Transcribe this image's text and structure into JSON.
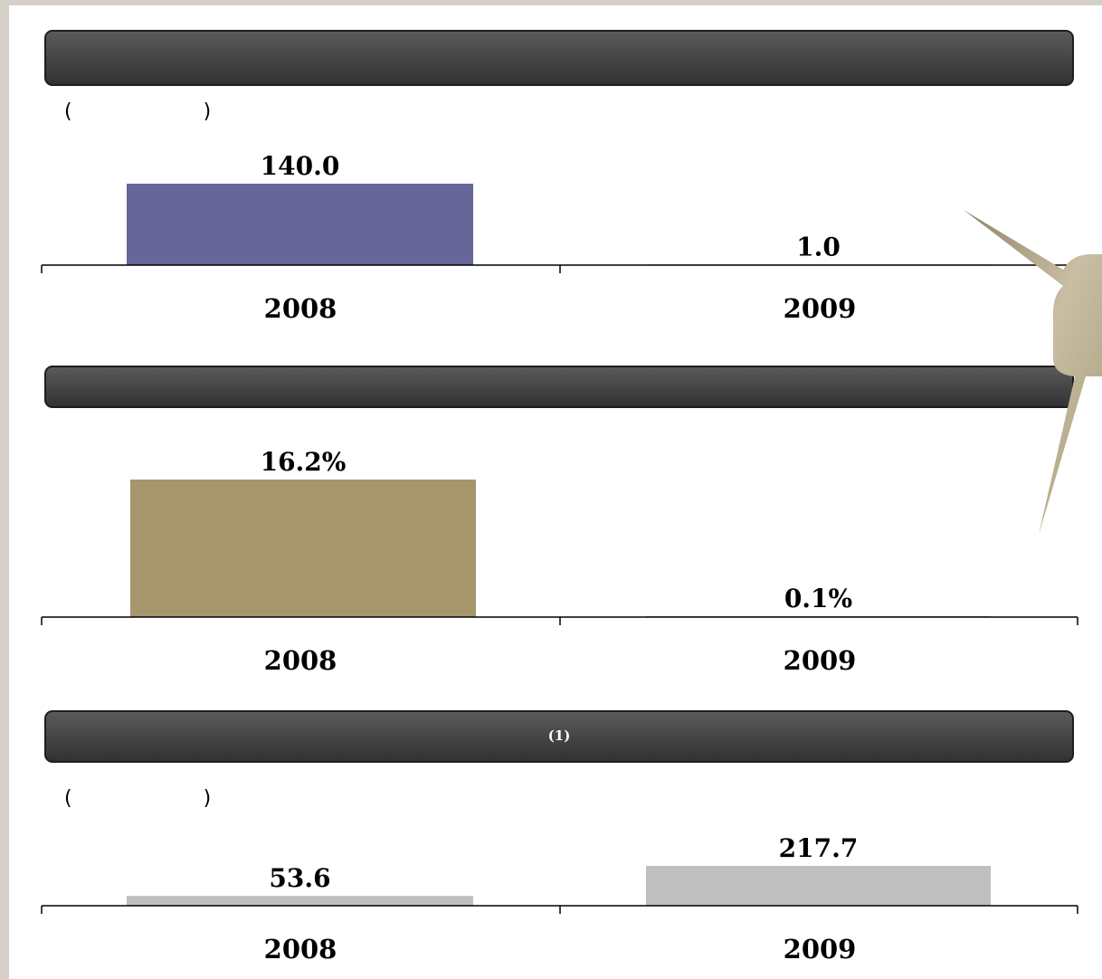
{
  "panels": [
    {
      "header": "",
      "unit": "( )"
    },
    {
      "header": "",
      "unit": ""
    },
    {
      "header": "(1)",
      "unit": "( )"
    }
  ],
  "chart_data": [
    {
      "type": "bar",
      "categories": [
        "2008",
        "2009"
      ],
      "values": [
        140.0,
        1.0
      ],
      "value_labels": [
        "140.0",
        "1.0"
      ],
      "color": "#666699"
    },
    {
      "type": "bar",
      "categories": [
        "2008",
        "2009"
      ],
      "values": [
        16.2,
        0.1
      ],
      "value_labels": [
        "16.2%",
        "0.1%"
      ],
      "color": "#a6966d"
    },
    {
      "type": "bar",
      "categories": [
        "2008",
        "2009"
      ],
      "values": [
        53.6,
        217.7
      ],
      "value_labels": [
        "53.6",
        "217.7"
      ],
      "color": "#bfbfbf"
    }
  ],
  "colors": {
    "header_bar": "#3d3d3d",
    "callout": "#b5a98a"
  }
}
